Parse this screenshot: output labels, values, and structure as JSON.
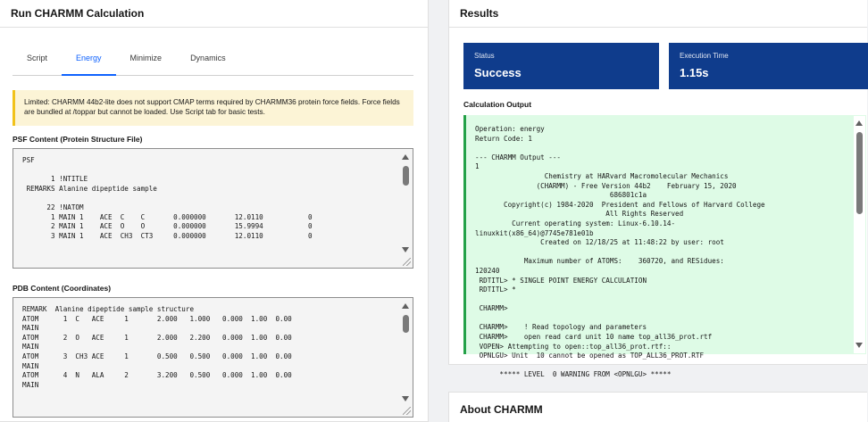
{
  "left": {
    "title": "Run CHARMM Calculation",
    "tabs": [
      {
        "label": "Script"
      },
      {
        "label": "Energy"
      },
      {
        "label": "Minimize"
      },
      {
        "label": "Dynamics"
      }
    ],
    "active_tab": "Energy",
    "warning": "Limited: CHARMM 44b2-lite does not support CMAP terms required by CHARMM36 protein force fields. Force fields are bundled at /toppar but cannot be loaded. Use Script tab for basic tests.",
    "psf_label": "PSF Content (Protein Structure File)",
    "psf_content": "PSF\n\n       1 !NTITLE\n REMARKS Alanine dipeptide sample\n\n      22 !NATOM\n       1 MAIN 1    ACE  C    C       0.000000       12.0110           0\n       2 MAIN 1    ACE  O    O       0.000000       15.9994           0\n       3 MAIN 1    ACE  CH3  CT3     0.000000       12.0110           0",
    "pdb_label": "PDB Content (Coordinates)",
    "pdb_content": "REMARK  Alanine dipeptide sample structure\nATOM      1  C   ACE     1       2.000   1.000   0.000  1.00  0.00\nMAIN\nATOM      2  O   ACE     1       2.000   2.200   0.000  1.00  0.00\nMAIN\nATOM      3  CH3 ACE     1       0.500   0.500   0.000  1.00  0.00\nMAIN\nATOM      4  N   ALA     2       3.200   0.500   0.000  1.00  0.00\nMAIN"
  },
  "right": {
    "title": "Results",
    "status_label": "Status",
    "status_value": "Success",
    "time_label": "Execution Time",
    "time_value": "1.15s",
    "output_label": "Calculation Output",
    "output_content": "Operation: energy\nReturn Code: 1\n\n--- CHARMM Output ---\n1\n                 Chemistry at HARvard Macromolecular Mechanics\n               (CHARMM) - Free Version 44b2    February 15, 2020\n                                 686801c1a\n       Copyright(c) 1984-2020  President and Fellows of Harvard College\n                                All Rights Reserved\n         Current operating system: Linux-6.10.14-\nlinuxkit(x86_64)@7745e781e01b\n                Created on 12/18/25 at 11:48:22 by user: root\n\n            Maximum number of ATOMS:    360720, and RESidues:\n120240\n RDTITL> * SINGLE POINT ENERGY CALCULATION\n RDTITL> *\n\n CHARMM>\n\n CHARMM>    ! Read topology and parameters\n CHARMM>    open read card unit 10 name top_all36_prot.rtf\n VOPEN> Attempting to open::top_all36_prot.rtf::\n OPNLGU> Unit  10 cannot be opened as TOP_ALL36_PROT.RTF\n\n      ***** LEVEL  0 WARNING FROM <OPNLGU> *****",
    "status_color": "#0f3c8c"
  },
  "about": {
    "title": "About CHARMM"
  }
}
